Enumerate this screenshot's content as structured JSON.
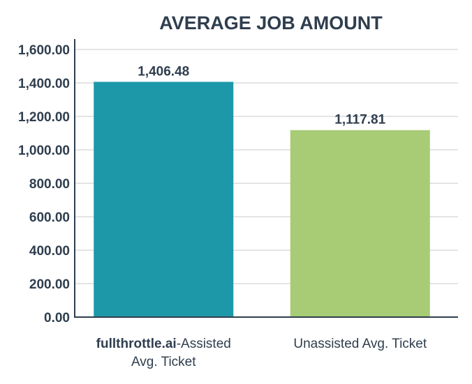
{
  "chart_data": {
    "type": "bar",
    "title": "AVERAGE JOB AMOUNT",
    "xlabel": "",
    "ylabel": "",
    "categories": [
      {
        "lines": [
          [
            {
              "text": "fullthrottle.ai",
              "bold": true
            },
            {
              "text": "-Assisted",
              "bold": false
            }
          ],
          [
            {
              "text": "Avg. Ticket",
              "bold": false
            }
          ]
        ]
      },
      {
        "lines": [
          [
            {
              "text": "Unassisted Avg. Ticket",
              "bold": false
            }
          ]
        ]
      }
    ],
    "values": [
      1406.48,
      1117.81
    ],
    "value_labels": [
      "1,406.48",
      "1,117.81"
    ],
    "bar_colors": [
      "#1d98a8",
      "#a7cc75"
    ],
    "ylim": [
      0,
      1600
    ],
    "yticks": [
      {
        "value": 0,
        "label": "0.00"
      },
      {
        "value": 200,
        "label": "200.00"
      },
      {
        "value": 400,
        "label": "400.00"
      },
      {
        "value": 600,
        "label": "600.00"
      },
      {
        "value": 800,
        "label": "800.00"
      },
      {
        "value": 1000,
        "label": "1,000.00"
      },
      {
        "value": 1200,
        "label": "1,200.00"
      },
      {
        "value": 1400,
        "label": "1,400.00"
      },
      {
        "value": 1600,
        "label": "1,600.00"
      }
    ],
    "grid": true,
    "legend": "none"
  }
}
